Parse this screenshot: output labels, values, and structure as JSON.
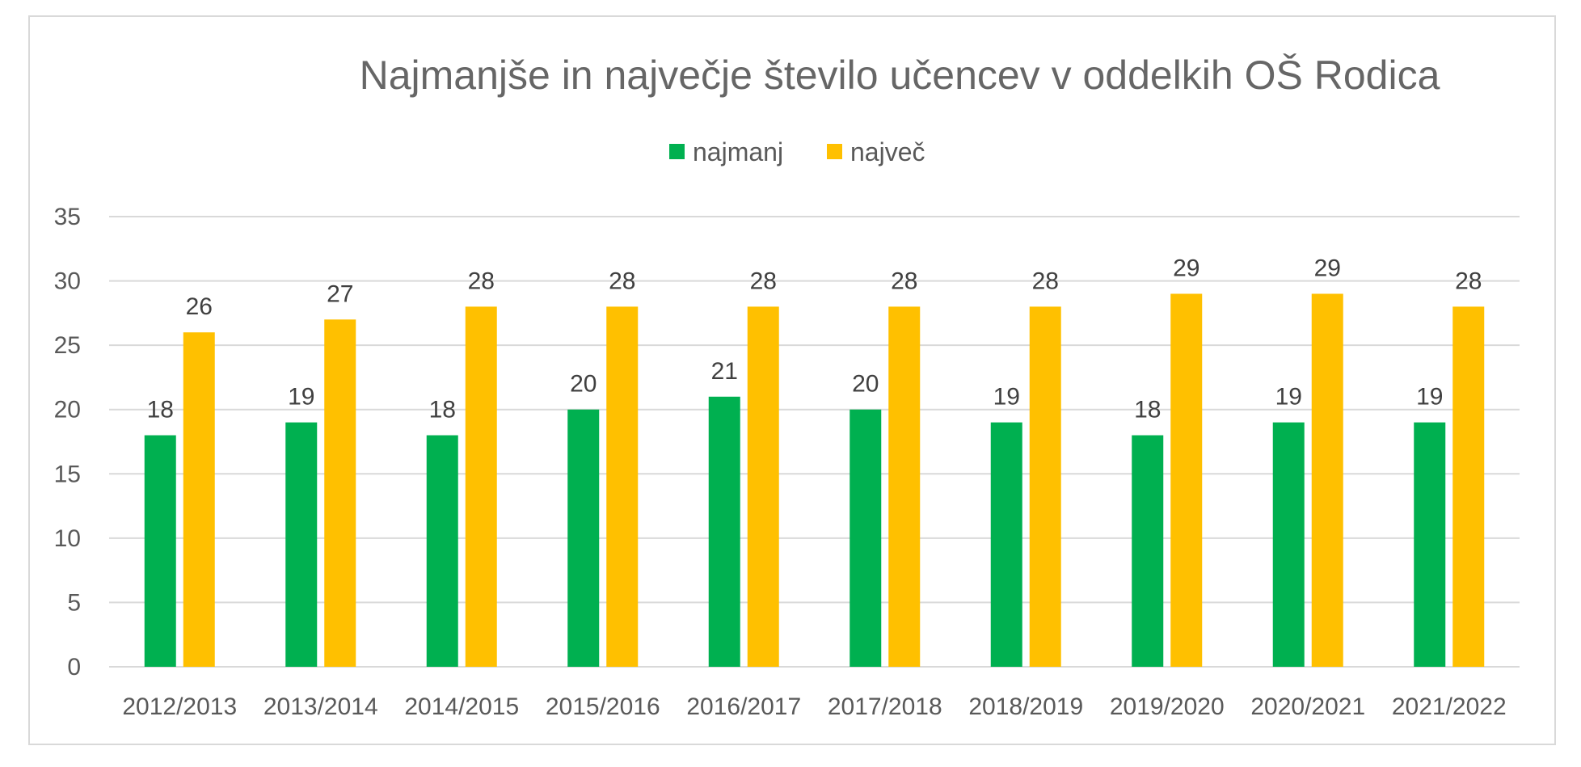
{
  "chart_data": {
    "type": "bar",
    "title": "Najmanjše in največje število učencev v oddelkih OŠ Rodica",
    "categories": [
      "2012/2013",
      "2013/2014",
      "2014/2015",
      "2015/2016",
      "2016/2017",
      "2017/2018",
      "2018/2019",
      "2019/2020",
      "2020/2021",
      "2021/2022"
    ],
    "series": [
      {
        "name": "najmanj",
        "color": "#00b050",
        "values": [
          18,
          19,
          18,
          20,
          21,
          20,
          19,
          18,
          19,
          19
        ]
      },
      {
        "name": "največ",
        "color": "#ffc000",
        "values": [
          26,
          27,
          28,
          28,
          28,
          28,
          28,
          29,
          29,
          28
        ]
      }
    ],
    "ylim": [
      0,
      35
    ],
    "yticks": [
      0,
      5,
      10,
      15,
      20,
      25,
      30,
      35
    ],
    "grid": true,
    "legend_position": "top",
    "data_labels": true
  }
}
